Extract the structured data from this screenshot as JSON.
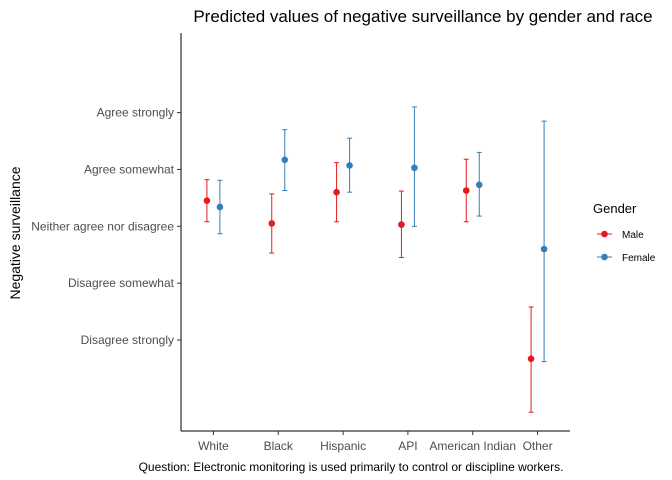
{
  "chart_data": {
    "type": "scatter",
    "title": "Predicted values of negative surveillance by gender and race",
    "xlabel": "",
    "ylabel": "Negative surveillance",
    "caption": "Question: Electronic monitoring is used primarily to control or discipline workers.",
    "categories": [
      "White",
      "Black",
      "Hispanic",
      "API",
      "American Indian",
      "Other"
    ],
    "y_tick_values": [
      1,
      2,
      3,
      4,
      5
    ],
    "y_tick_labels": [
      "Disagree strongly",
      "Disagree somewhat",
      "Neither agree nor disagree",
      "Agree somewhat",
      "Agree strongly"
    ],
    "ylim": [
      -0.6,
      6.4
    ],
    "grid": false,
    "legend": {
      "title": "Gender",
      "position": "right"
    },
    "series": [
      {
        "name": "Male",
        "color": "#e41a1c",
        "values": [
          3.45,
          3.05,
          3.6,
          3.03,
          3.63,
          0.67
        ],
        "lower": [
          3.08,
          2.53,
          3.08,
          2.45,
          3.08,
          -0.27
        ],
        "upper": [
          3.82,
          3.57,
          4.12,
          3.62,
          4.18,
          1.58
        ]
      },
      {
        "name": "Female",
        "color": "#377eb8",
        "values": [
          3.34,
          4.17,
          4.07,
          4.03,
          3.73,
          2.6
        ],
        "lower": [
          2.87,
          3.63,
          3.6,
          3.0,
          3.18,
          0.62
        ],
        "upper": [
          3.81,
          4.7,
          4.55,
          5.1,
          4.3,
          4.85
        ]
      }
    ]
  }
}
